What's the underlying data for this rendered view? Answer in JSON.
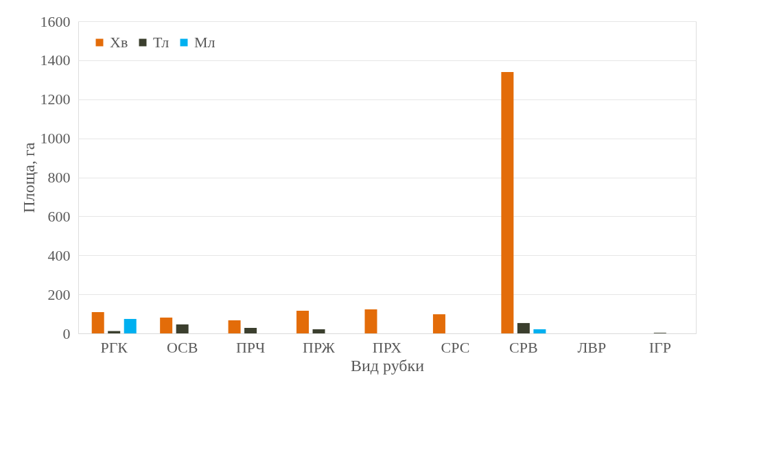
{
  "chart_data": {
    "type": "bar",
    "xlabel": "Вид рубки",
    "ylabel": "Площа, га",
    "categories": [
      "РГК",
      "ОСВ",
      "ПРЧ",
      "ПРЖ",
      "ПРХ",
      "СРС",
      "СРВ",
      "ЛВР",
      "ІГР"
    ],
    "series": [
      {
        "name": "Хв",
        "color": "#e36c09",
        "values": [
          109,
          81,
          67,
          116,
          123,
          98,
          1340,
          0,
          0
        ]
      },
      {
        "name": "Тл",
        "color": "#3b3f2e",
        "values": [
          12,
          46,
          28,
          21,
          0,
          0,
          53,
          0,
          3
        ]
      },
      {
        "name": "Мл",
        "color": "#00b0f0",
        "values": [
          74,
          0,
          0,
          0,
          0,
          0,
          21,
          0,
          0
        ]
      }
    ],
    "ylim": [
      0,
      1600
    ],
    "yticks": [
      0,
      200,
      400,
      600,
      800,
      1000,
      1200,
      1400,
      1600
    ],
    "grid": "y",
    "legend": "top left"
  }
}
